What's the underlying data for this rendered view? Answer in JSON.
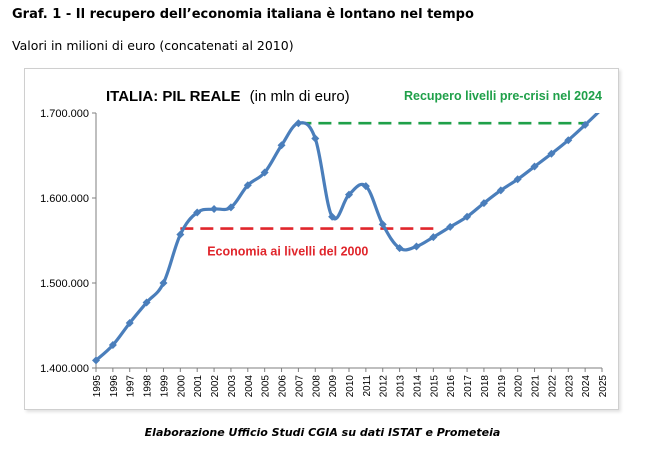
{
  "heading": "Graf. 1 - Il recupero dell’economia italiana è lontano nel tempo",
  "subheading": "Valori in milioni di euro (concatenati al 2010)",
  "source": "Elaborazione Ufficio Studi CGIA su dati ISTAT e Prometeia",
  "colors": {
    "line": "#4a7ebb",
    "green": "#1fa049",
    "red": "#e0262c"
  },
  "chart_data": {
    "type": "line",
    "title": "ITALIA: PIL REALE",
    "title_unit": "(in mln di euro)",
    "ylim": [
      1400000,
      1700000
    ],
    "y_ticks": [
      1400000,
      1500000,
      1600000,
      1700000
    ],
    "y_tick_labels": [
      "1.400.000",
      "1.500.000",
      "1.600.000",
      "1.700.000"
    ],
    "x": [
      "1995",
      "1996",
      "1997",
      "1998",
      "1999",
      "2000",
      "2001",
      "2002",
      "2003",
      "2004",
      "2005",
      "2006",
      "2007",
      "2008",
      "2009",
      "2010",
      "2011",
      "2012",
      "2013",
      "2014",
      "2015",
      "2016",
      "2017",
      "2018",
      "2019",
      "2020",
      "2021",
      "2022",
      "2023",
      "2024",
      "2025"
    ],
    "series": [
      {
        "values": [
          1409000,
          1427000,
          1453000,
          1477000,
          1500000,
          1557000,
          1583000,
          1587000,
          1589000,
          1615000,
          1630000,
          1662000,
          1688000,
          1670000,
          1578000,
          1604000,
          1614000,
          1569000,
          1541000,
          1543000,
          1554000,
          1566000,
          1578000,
          1594000,
          1609000,
          1622000,
          1637000,
          1652000,
          1668000,
          1686000,
          1705000
        ]
      }
    ],
    "reference_lines": [
      {
        "label": "Recupero livelli pre-crisi nel 2024",
        "value": 1688000,
        "from": "2007",
        "to": "2024",
        "color": "#1fa049",
        "style": "dashed"
      },
      {
        "label": "Economia ai livelli del 2000",
        "value": 1564000,
        "from": "2000",
        "to": "2015",
        "color": "#e0262c",
        "style": "dashed"
      }
    ],
    "grid": false,
    "legend": "none"
  }
}
